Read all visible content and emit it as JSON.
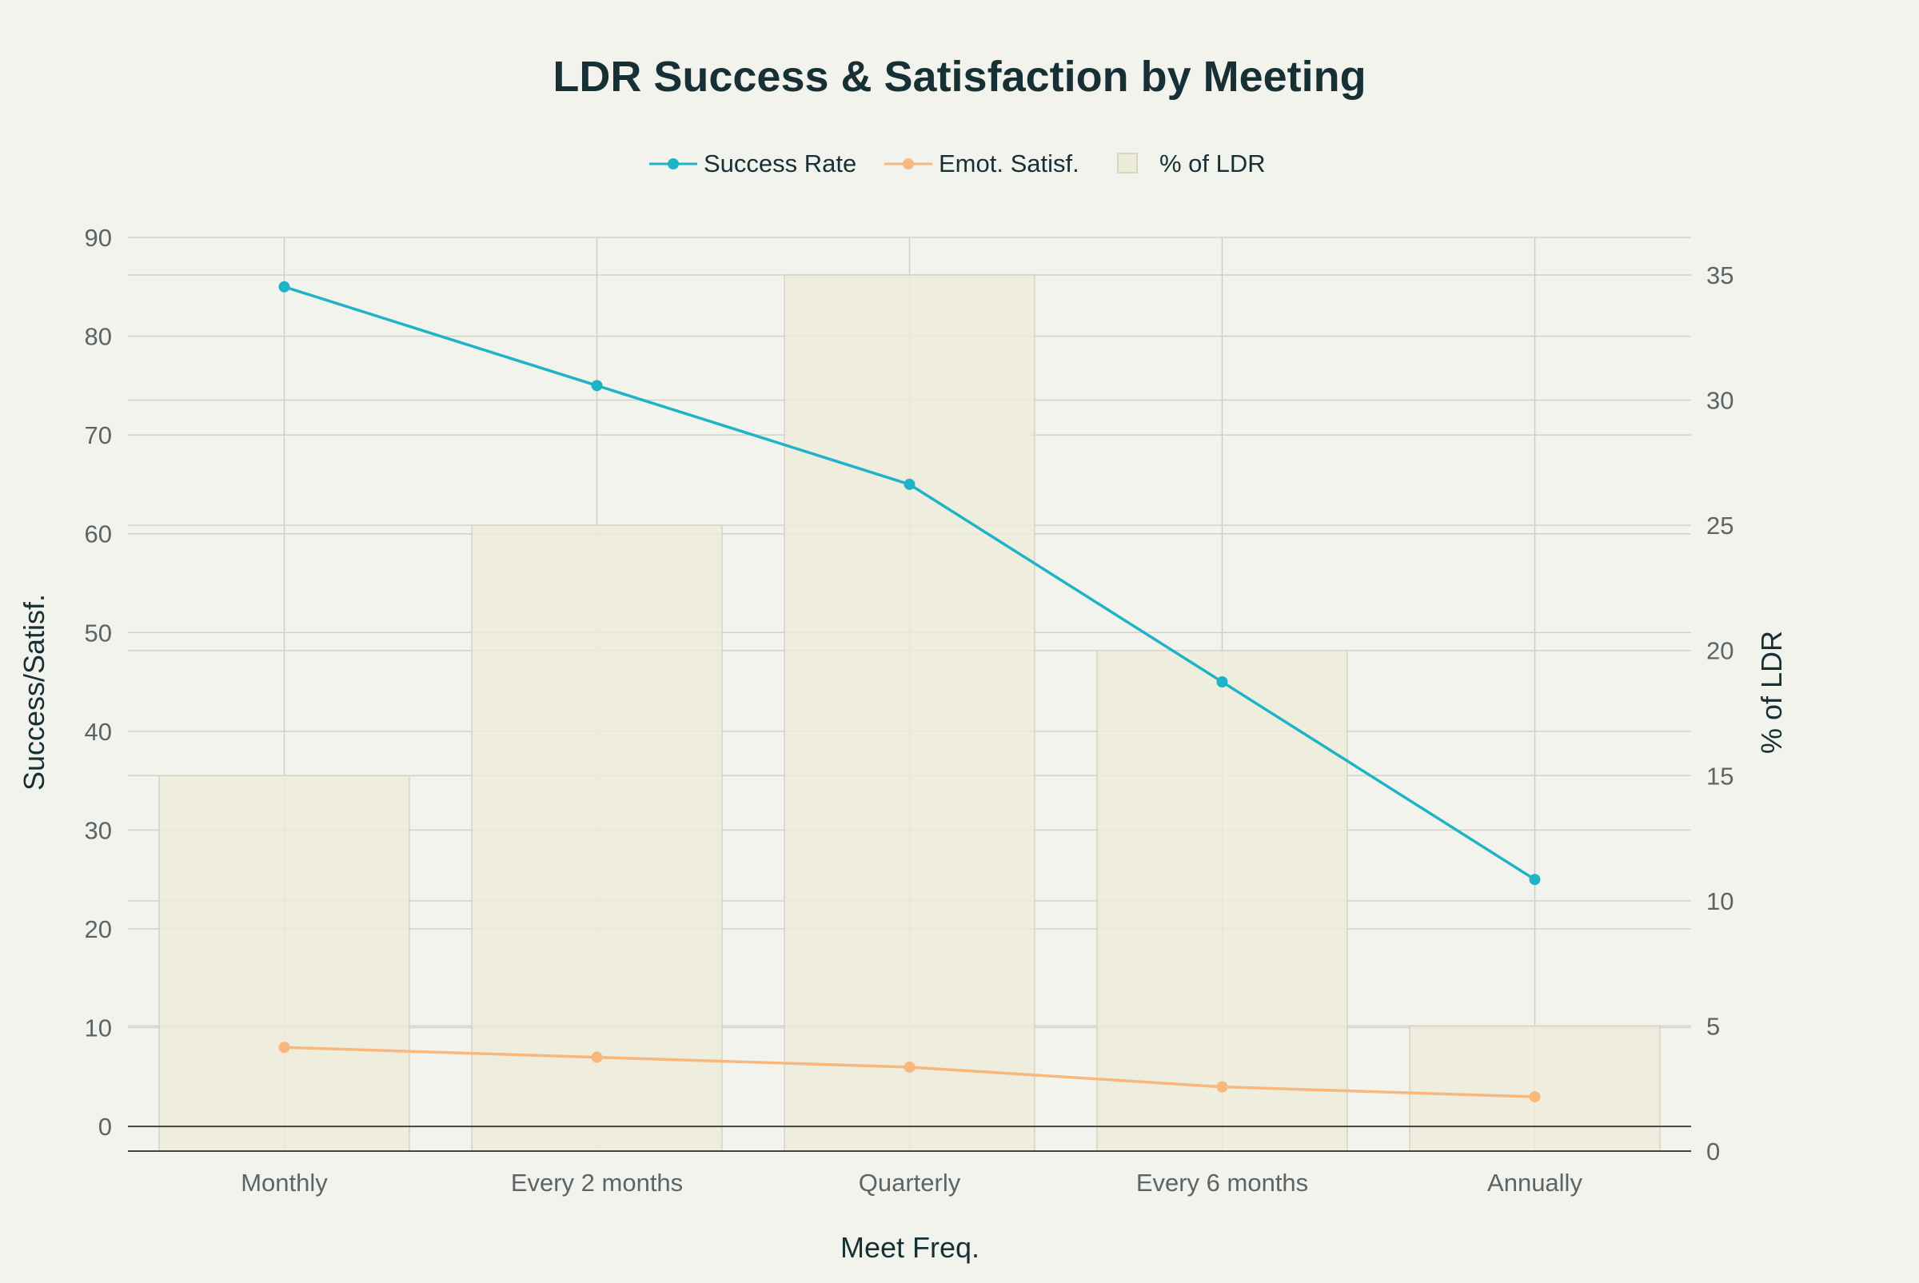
{
  "chart_data": {
    "type": "bar",
    "title": "LDR Success & Satisfaction by Meeting",
    "xlabel": "Meet Freq.",
    "ylabel": "Success/Satisf.",
    "y2label": "% of LDR",
    "categories": [
      "Monthly",
      "Every 2 months",
      "Quarterly",
      "Every 6 months",
      "Annually"
    ],
    "ylim": [
      -2.5,
      90
    ],
    "y2lim": [
      0,
      36.5
    ],
    "yticks": [
      0,
      10,
      20,
      30,
      40,
      50,
      60,
      70,
      80,
      90
    ],
    "y2ticks": [
      0,
      5,
      10,
      15,
      20,
      25,
      30,
      35
    ],
    "grid": true,
    "legend_position": "top-center",
    "series": [
      {
        "name": "Success Rate",
        "type": "line",
        "axis": "left",
        "color": "#1fb3c8",
        "values": [
          85,
          75,
          65,
          45,
          25
        ]
      },
      {
        "name": "Emot. Satisf.",
        "type": "line",
        "axis": "left",
        "color": "#f7b77d",
        "values": [
          8,
          7,
          6,
          4,
          3
        ]
      },
      {
        "name": "% of LDR",
        "type": "bar",
        "axis": "right",
        "color": "#edebd9",
        "values": [
          15,
          25,
          35,
          20,
          5
        ]
      }
    ]
  }
}
